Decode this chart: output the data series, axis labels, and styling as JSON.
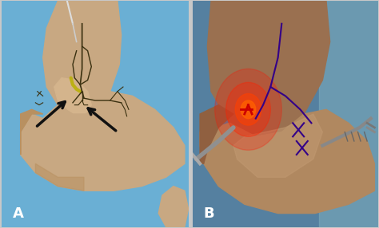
{
  "fig_width": 4.74,
  "fig_height": 2.86,
  "dpi": 100,
  "bg_color": "#c8c8c8",
  "label_A": "A",
  "label_B": "B",
  "label_fontsize": 13,
  "label_color": "white",
  "panel_A": {
    "blue_bg": "#6aafd4",
    "skin_leg": "#c8a882",
    "skin_foot": "#c8a882",
    "skin_heel": "#b89060",
    "skin_dark": "#a87848",
    "ankle_bump": "#d4b48c",
    "marking_color": "#3a3010",
    "yellow_color": "#b8b000",
    "arrow_color": "#111111"
  },
  "panel_B": {
    "blue_bg": "#5580a0",
    "blue_bg2": "#4a7898",
    "skin_leg": "#9a7050",
    "skin_foot": "#b08860",
    "skin_ankle": "#a07848",
    "red_glow": "#ff2000",
    "marking_color": "#330088",
    "instrument_color": "#909090"
  }
}
